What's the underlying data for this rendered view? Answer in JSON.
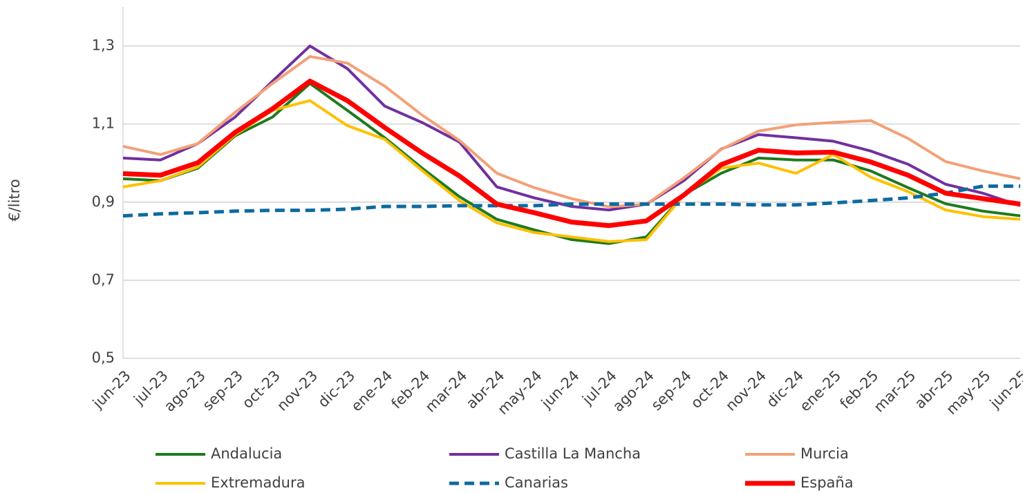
{
  "chart_data": {
    "type": "line",
    "y_label": "€/litro",
    "categories": [
      "jun-23",
      "jul-23",
      "ago-23",
      "sep-23",
      "oct-23",
      "nov-23",
      "dic-23",
      "ene-24",
      "feb-24",
      "mar-24",
      "abr-24",
      "may-24",
      "jun-24",
      "jul-24",
      "ago-24",
      "sep-24",
      "oct-24",
      "nov-24",
      "dic-24",
      "ene-25",
      "feb-25",
      "mar-25",
      "abr-25",
      "may-25",
      "jun-25"
    ],
    "ylim": [
      0.5,
      1.4
    ],
    "yticks": [
      {
        "value": 0.5,
        "label": "0,5"
      },
      {
        "value": 0.7,
        "label": "0,7"
      },
      {
        "value": 0.9,
        "label": "0,9"
      },
      {
        "value": 1.1,
        "label": "1,1"
      },
      {
        "value": 1.3,
        "label": "1,3"
      }
    ],
    "grid": true,
    "series": [
      {
        "name": "Andalucia",
        "color": "#1e7a1e",
        "linewidth": 4,
        "style": "solid",
        "values": [
          0.96,
          0.955,
          0.987,
          1.07,
          1.118,
          1.204,
          1.135,
          1.065,
          0.987,
          0.914,
          0.856,
          0.829,
          0.804,
          0.794,
          0.811,
          0.919,
          0.974,
          1.013,
          1.008,
          1.008,
          0.98,
          0.937,
          0.896,
          0.877,
          0.865
        ]
      },
      {
        "name": "Castilla La Mancha",
        "color": "#7030a0",
        "linewidth": 4,
        "style": "solid",
        "values": [
          1.013,
          1.008,
          1.05,
          1.118,
          1.21,
          1.3,
          1.242,
          1.146,
          1.104,
          1.054,
          0.939,
          0.911,
          0.889,
          0.88,
          0.895,
          0.955,
          1.036,
          1.073,
          1.065,
          1.056,
          1.031,
          0.997,
          0.946,
          0.923,
          0.891
        ]
      },
      {
        "name": "Murcia",
        "color": "#f4a077",
        "linewidth": 4,
        "style": "solid",
        "values": [
          1.043,
          1.022,
          1.05,
          1.13,
          1.204,
          1.273,
          1.256,
          1.197,
          1.123,
          1.058,
          0.974,
          0.937,
          0.909,
          0.888,
          0.895,
          0.962,
          1.035,
          1.082,
          1.098,
          1.104,
          1.109,
          1.063,
          1.004,
          0.98,
          0.96
        ]
      },
      {
        "name": "Extremadura",
        "color": "#ffc000",
        "linewidth": 4,
        "style": "solid",
        "values": [
          0.939,
          0.955,
          0.99,
          1.073,
          1.135,
          1.16,
          1.096,
          1.061,
          0.981,
          0.904,
          0.847,
          0.822,
          0.811,
          0.799,
          0.804,
          0.918,
          0.987,
          1.0,
          0.974,
          1.022,
          0.964,
          0.927,
          0.88,
          0.863,
          0.856
        ]
      },
      {
        "name": "Canarias",
        "color": "#0e6aa0",
        "linewidth": 5,
        "style": "dashed",
        "values": [
          0.865,
          0.87,
          0.873,
          0.877,
          0.879,
          0.879,
          0.882,
          0.889,
          0.889,
          0.891,
          0.891,
          0.891,
          0.895,
          0.895,
          0.895,
          0.895,
          0.895,
          0.893,
          0.893,
          0.898,
          0.904,
          0.911,
          0.923,
          0.941,
          0.941
        ]
      },
      {
        "name": "España",
        "color": "#ff0000",
        "linewidth": 7,
        "style": "solid",
        "values": [
          0.973,
          0.969,
          1.001,
          1.079,
          1.139,
          1.21,
          1.16,
          1.091,
          1.026,
          0.967,
          0.895,
          0.873,
          0.849,
          0.84,
          0.852,
          0.918,
          0.996,
          1.033,
          1.026,
          1.028,
          1.003,
          0.969,
          0.923,
          0.909,
          0.895
        ]
      }
    ]
  }
}
